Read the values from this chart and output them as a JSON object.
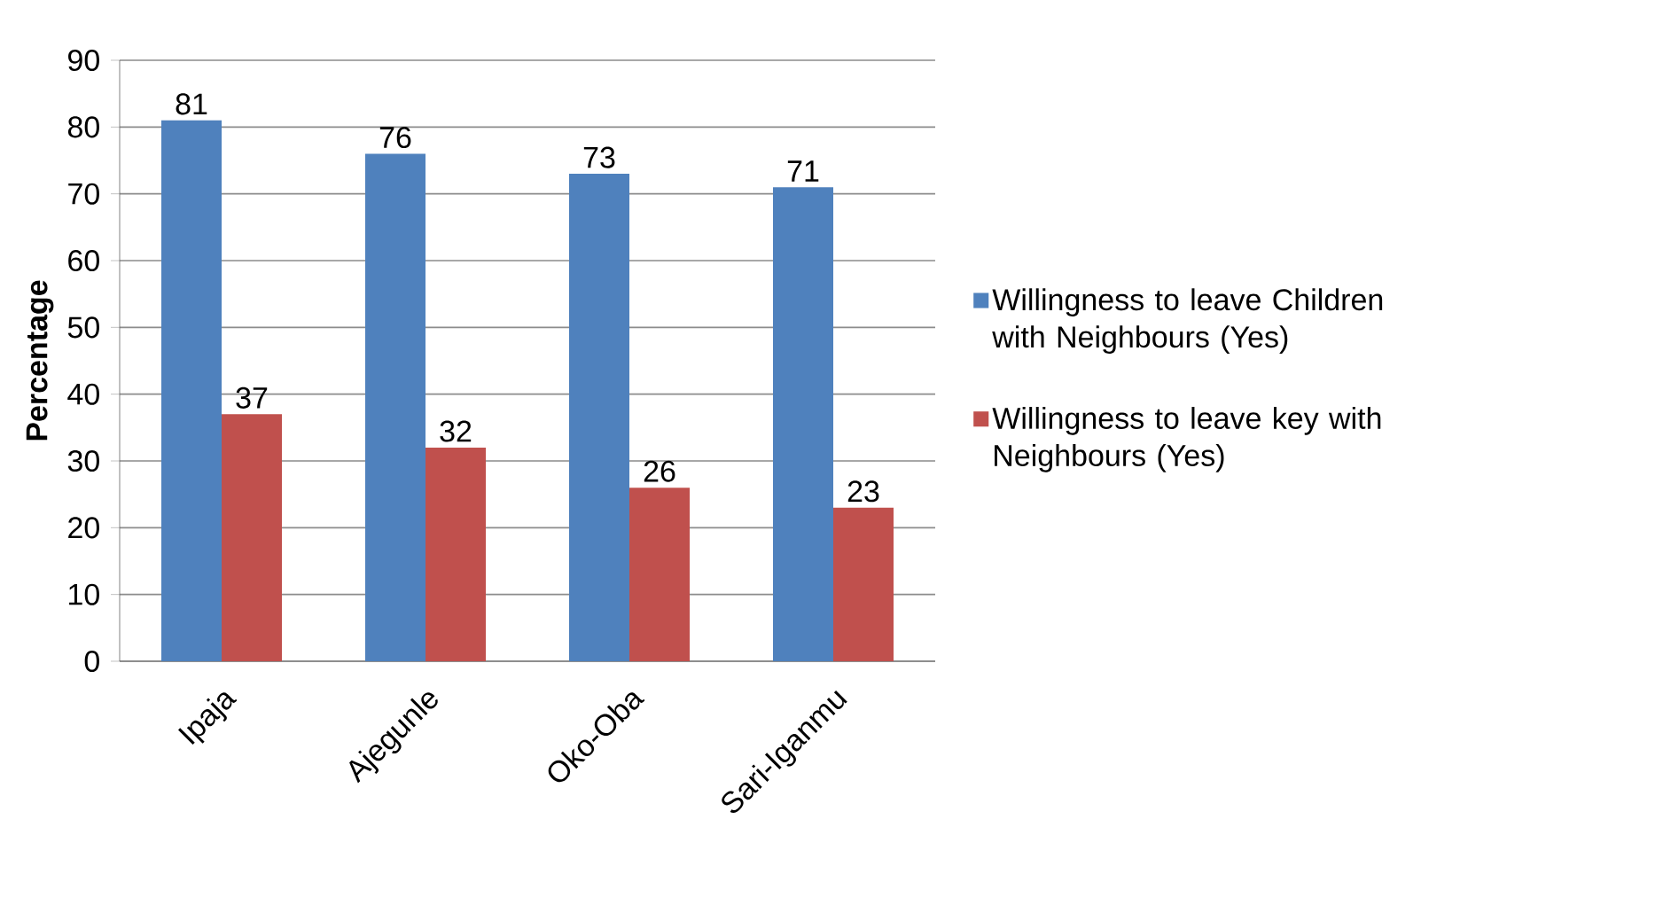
{
  "chart_data": {
    "type": "bar",
    "ylabel": "Percentage",
    "categories": [
      "Ipaja",
      "Ajegunle",
      "Oko-Oba",
      "Sari-Iganmu"
    ],
    "series": [
      {
        "name": "Willingness to leave Children with Neighbours (Yes)",
        "color": "#4f81bd",
        "values": [
          81,
          76,
          73,
          71
        ]
      },
      {
        "name": "Willingness to leave key with Neighbours (Yes)",
        "color": "#c0504d",
        "values": [
          37,
          32,
          26,
          23
        ]
      }
    ],
    "ylim": [
      0,
      90
    ],
    "yticks": [
      0,
      10,
      20,
      30,
      40,
      50,
      60,
      70,
      80,
      90
    ],
    "grid": "y",
    "legend": "right",
    "data_labels": true
  }
}
